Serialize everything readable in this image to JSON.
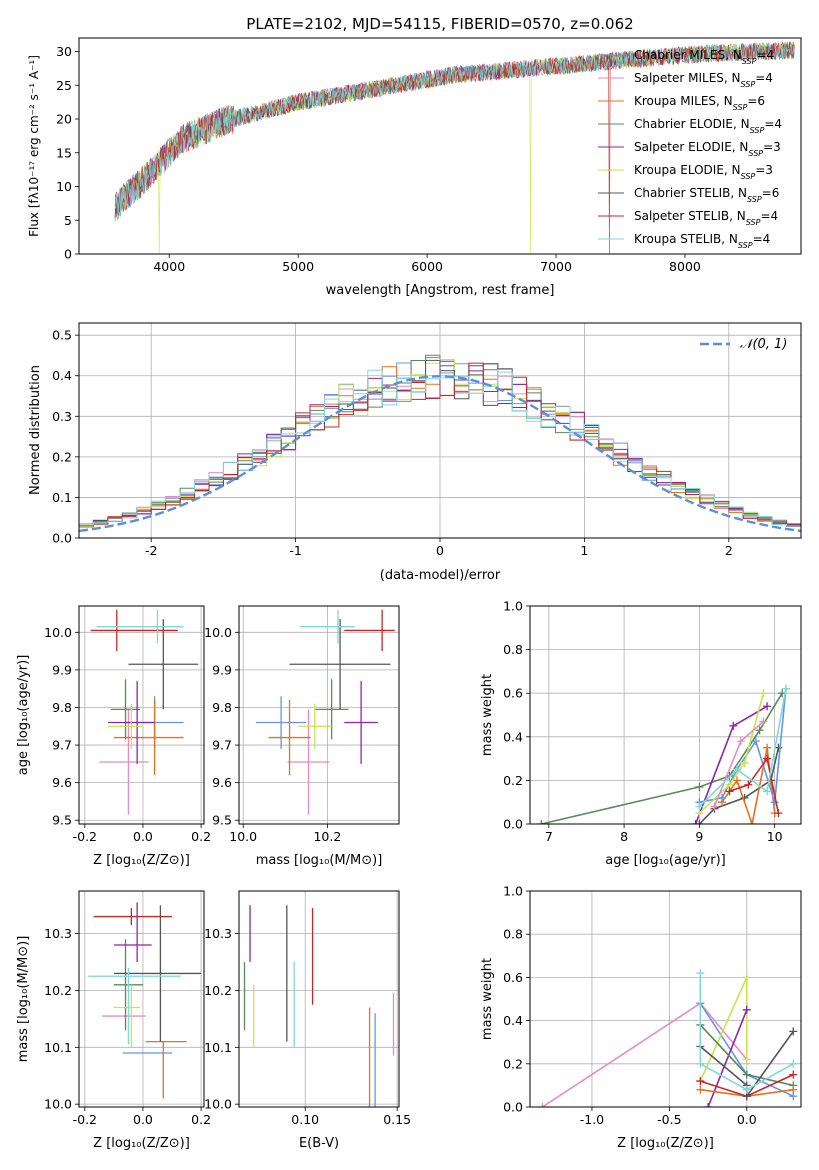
{
  "colors": {
    "Chabrier MILES": "#6495ed",
    "Salpeter MILES": "#e78ac3",
    "Kroupa MILES": "#e2721d",
    "Chabrier ELODIE": "#5a8a5a",
    "Salpeter ELODIE": "#8e24aa",
    "Kroupa ELODIE": "#c7e54a",
    "Chabrier STELIB": "#555555",
    "Salpeter STELIB": "#c62828",
    "Kroupa STELIB": "#7fd8dc"
  },
  "chart_data": [
    {
      "type": "line",
      "title": "PLATE=2102, MJD=54115, FIBERID=0570, z=0.062",
      "xlabel": "wavelength [Angstrom, rest frame]",
      "ylabel": "Flux [fλ10⁻¹⁷ erg cm⁻² s⁻¹ A⁻¹]",
      "xlim": [
        3300,
        8900
      ],
      "ylim": [
        0,
        32
      ],
      "xticks": [
        4000,
        5000,
        6000,
        7000,
        8000
      ],
      "yticks": [
        0,
        5,
        10,
        15,
        20,
        25,
        30
      ],
      "legend_position": "right",
      "series": [
        {
          "name": "Chabrier MILES",
          "ssp": "4"
        },
        {
          "name": "Salpeter MILES",
          "ssp": "4"
        },
        {
          "name": "Kroupa MILES",
          "ssp": "6"
        },
        {
          "name": "Chabrier ELODIE",
          "ssp": "4"
        },
        {
          "name": "Salpeter ELODIE",
          "ssp": "3"
        },
        {
          "name": "Kroupa ELODIE",
          "ssp": "3"
        },
        {
          "name": "Chabrier STELIB",
          "ssp": "6"
        },
        {
          "name": "Salpeter STELIB",
          "ssp": "4"
        },
        {
          "name": "Kroupa STELIB",
          "ssp": "4"
        }
      ],
      "continuum": {
        "x": [
          3580,
          3800,
          3950,
          4100,
          4400,
          4700,
          5000,
          5300,
          5600,
          5900,
          6200,
          6500,
          6800,
          7100,
          7400,
          7700,
          8000,
          8300,
          8600,
          8850
        ],
        "y": [
          7,
          11,
          14,
          17,
          19.5,
          21,
          22.5,
          23.5,
          24.5,
          25.5,
          26.5,
          27,
          27.5,
          28,
          28.5,
          29,
          29.5,
          29.8,
          30,
          30.2
        ]
      },
      "dips": [
        {
          "x": 3920,
          "y": 0,
          "series": "Kroupa ELODIE"
        },
        {
          "x": 6800,
          "y": 0,
          "series": "Kroupa ELODIE"
        },
        {
          "x": 7415,
          "y": 0,
          "series": "Salpeter STELIB"
        }
      ]
    },
    {
      "type": "histogram",
      "xlabel": "(data-model)/error",
      "ylabel": "Normed distribution",
      "xlim": [
        -2.5,
        2.5
      ],
      "ylim": [
        0,
        0.53
      ],
      "xticks": [
        -2,
        -1,
        0,
        1,
        2
      ],
      "yticks": [
        0.0,
        0.1,
        0.2,
        0.3,
        0.4,
        0.5
      ],
      "reference": {
        "name": "𝒩(0, 1)",
        "type": "normal",
        "mean": 0,
        "sigma": 1
      }
    },
    {
      "type": "scatter",
      "xlabel": "Z [log₁₀(Z/Z⊙)]",
      "ylabel": "age  [log₁₀(age/yr)]",
      "xlim": [
        -0.22,
        0.21
      ],
      "ylim": [
        9.49,
        10.07
      ],
      "xticks": [
        -0.2,
        0.0,
        0.2
      ],
      "yticks": [
        9.5,
        9.6,
        9.7,
        9.8,
        9.9,
        10.0
      ],
      "points": [
        {
          "series": "Chabrier MILES",
          "x": 0.04,
          "y": 9.76,
          "xerr": [
            0.1,
            0.1
          ],
          "yerr": [
            0.07,
            0.07
          ]
        },
        {
          "series": "Salpeter MILES",
          "x": -0.05,
          "y": 9.655,
          "xerr": [
            0.1,
            0.07
          ],
          "yerr": [
            0.14,
            0.14
          ]
        },
        {
          "series": "Kroupa MILES",
          "x": 0.04,
          "y": 9.72,
          "xerr": [
            0.14,
            0.1
          ],
          "yerr": [
            0.1,
            0.1
          ]
        },
        {
          "series": "Chabrier ELODIE",
          "x": -0.06,
          "y": 9.795,
          "xerr": [
            0.05,
            0.05
          ],
          "yerr": [
            0.08,
            0.08
          ]
        },
        {
          "series": "Salpeter ELODIE",
          "x": -0.02,
          "y": 9.76,
          "xerr": [
            0.1,
            0.06
          ],
          "yerr": [
            0.11,
            0.11
          ]
        },
        {
          "series": "Kroupa ELODIE",
          "x": -0.04,
          "y": 9.75,
          "xerr": [
            0.08,
            0.04
          ],
          "yerr": [
            0.06,
            0.06
          ]
        },
        {
          "series": "Chabrier STELIB",
          "x": 0.07,
          "y": 9.915,
          "xerr": [
            0.12,
            0.12
          ],
          "yerr": [
            0.12,
            0.12
          ]
        },
        {
          "series": "Salpeter STELIB",
          "x": -0.09,
          "y": 10.005,
          "xerr": [
            0.09,
            0.21
          ],
          "yerr": [
            0.055,
            0.055
          ]
        },
        {
          "series": "Kroupa STELIB",
          "x": 0.05,
          "y": 10.015,
          "xerr": [
            0.21,
            0.09
          ],
          "yerr": [
            0.045,
            0.045
          ]
        }
      ]
    },
    {
      "type": "scatter",
      "xlabel": "mass [log₁₀(M/M⊙)]",
      "ylabel": "",
      "xlim": [
        9.99,
        10.37
      ],
      "ylim": [
        9.49,
        10.07
      ],
      "xticks": [
        10.0,
        10.2
      ],
      "yticks": [
        9.5,
        9.6,
        9.7,
        9.8,
        9.9,
        10.0
      ],
      "points": [
        {
          "series": "Chabrier MILES",
          "x": 10.09,
          "y": 9.76,
          "xerr": [
            0.06,
            0.06
          ],
          "yerr": [
            0.07,
            0.07
          ]
        },
        {
          "series": "Salpeter MILES",
          "x": 10.155,
          "y": 9.655,
          "xerr": [
            0.05,
            0.05
          ],
          "yerr": [
            0.14,
            0.14
          ]
        },
        {
          "series": "Kroupa MILES",
          "x": 10.11,
          "y": 9.72,
          "xerr": [
            0.05,
            0.05
          ],
          "yerr": [
            0.1,
            0.1
          ]
        },
        {
          "series": "Chabrier ELODIE",
          "x": 10.21,
          "y": 9.795,
          "xerr": [
            0.04,
            0.04
          ],
          "yerr": [
            0.08,
            0.08
          ]
        },
        {
          "series": "Salpeter ELODIE",
          "x": 10.28,
          "y": 9.76,
          "xerr": [
            0.04,
            0.04
          ],
          "yerr": [
            0.11,
            0.11
          ]
        },
        {
          "series": "Kroupa ELODIE",
          "x": 10.17,
          "y": 9.75,
          "xerr": [
            0.04,
            0.04
          ],
          "yerr": [
            0.06,
            0.06
          ]
        },
        {
          "series": "Chabrier STELIB",
          "x": 10.23,
          "y": 9.915,
          "xerr": [
            0.12,
            0.12
          ],
          "yerr": [
            0.12,
            0.12
          ]
        },
        {
          "series": "Salpeter STELIB",
          "x": 10.33,
          "y": 10.005,
          "xerr": [
            0.09,
            0.03
          ],
          "yerr": [
            0.055,
            0.055
          ]
        },
        {
          "series": "Kroupa STELIB",
          "x": 10.225,
          "y": 10.015,
          "xerr": [
            0.09,
            0.04
          ],
          "yerr": [
            0.045,
            0.045
          ]
        }
      ]
    },
    {
      "type": "line",
      "xlabel": "age  [log₁₀(age/yr)]",
      "ylabel": "mass weight",
      "xlim": [
        6.75,
        10.35
      ],
      "ylim": [
        0,
        1.0
      ],
      "xticks": [
        7,
        8,
        9,
        10
      ],
      "yticks": [
        0.0,
        0.2,
        0.4,
        0.6,
        0.8,
        1.0
      ],
      "series": [
        {
          "name": "Chabrier ELODIE",
          "x": [
            6.9,
            9.0,
            9.4,
            9.8,
            10.1
          ],
          "y": [
            0.0,
            0.17,
            0.22,
            0.43,
            0.6
          ]
        },
        {
          "name": "Salpeter ELODIE",
          "x": [
            8.95,
            9.45,
            9.9
          ],
          "y": [
            0.0,
            0.45,
            0.54
          ]
        },
        {
          "name": "Chabrier STELIB",
          "x": [
            9.0,
            9.2,
            9.6,
            9.95,
            10.05
          ],
          "y": [
            0.0,
            0.07,
            0.12,
            0.2,
            0.35
          ]
        },
        {
          "name": "Kroupa MILES",
          "x": [
            9.3,
            9.5,
            9.7,
            9.9,
            10.0
          ],
          "y": [
            0.1,
            0.2,
            0.0,
            0.35,
            0.05
          ]
        },
        {
          "name": "Chabrier MILES",
          "x": [
            9.0,
            9.3,
            9.5,
            9.75,
            10.0,
            10.15
          ],
          "y": [
            0.1,
            0.12,
            0.25,
            0.38,
            0.1,
            0.62
          ]
        },
        {
          "name": "Kroupa ELODIE",
          "x": [
            9.0,
            9.4,
            9.6,
            9.85
          ],
          "y": [
            0.05,
            0.18,
            0.28,
            0.6
          ]
        },
        {
          "name": "Salpeter MILES",
          "x": [
            9.2,
            9.55,
            9.85
          ],
          "y": [
            0.08,
            0.38,
            0.47
          ]
        },
        {
          "name": "Salpeter STELIB",
          "x": [
            9.4,
            9.65,
            9.9,
            10.05
          ],
          "y": [
            0.15,
            0.18,
            0.3,
            0.05
          ]
        },
        {
          "name": "Kroupa STELIB",
          "x": [
            9.0,
            9.5,
            9.9,
            10.15
          ],
          "y": [
            0.08,
            0.25,
            0.15,
            0.62
          ]
        }
      ]
    },
    {
      "type": "scatter",
      "xlabel": "Z [log₁₀(Z/Z⊙)]",
      "ylabel": "mass [log₁₀(M/M⊙)]",
      "xlim": [
        -0.22,
        0.21
      ],
      "ylim": [
        9.995,
        10.375
      ],
      "xticks": [
        -0.2,
        0.0,
        0.2
      ],
      "yticks": [
        10.0,
        10.1,
        10.2,
        10.3
      ],
      "points": [
        {
          "series": "Chabrier MILES",
          "x": 0.0,
          "y": 10.09,
          "xerr": [
            0.07,
            0.1
          ],
          "yerr": [
            0.0,
            0.0
          ]
        },
        {
          "series": "Salpeter MILES",
          "x": -0.05,
          "y": 10.155,
          "xerr": [
            0.09,
            0.06
          ],
          "yerr": [
            0.0,
            0.0
          ]
        },
        {
          "series": "Kroupa MILES",
          "x": 0.07,
          "y": 10.11,
          "xerr": [
            0.06,
            0.08
          ],
          "yerr": [
            0.1,
            0.0
          ]
        },
        {
          "series": "Chabrier ELODIE",
          "x": -0.06,
          "y": 10.21,
          "xerr": [
            0.04,
            0.06
          ],
          "yerr": [
            0.08,
            0.08
          ]
        },
        {
          "series": "Salpeter ELODIE",
          "x": -0.02,
          "y": 10.28,
          "xerr": [
            0.08,
            0.05
          ],
          "yerr": [
            0.03,
            0.075
          ]
        },
        {
          "series": "Kroupa ELODIE",
          "x": -0.04,
          "y": 10.17,
          "xerr": [
            0.06,
            0.03
          ],
          "yerr": [
            0.07,
            0.04
          ]
        },
        {
          "series": "Chabrier STELIB",
          "x": 0.06,
          "y": 10.23,
          "xerr": [
            0.16,
            0.14
          ],
          "yerr": [
            0.12,
            0.12
          ]
        },
        {
          "series": "Salpeter STELIB",
          "x": -0.04,
          "y": 10.33,
          "xerr": [
            0.13,
            0.14
          ],
          "yerr": [
            0.015,
            0.015
          ]
        },
        {
          "series": "Kroupa STELIB",
          "x": -0.05,
          "y": 10.225,
          "xerr": [
            0.14,
            0.18
          ],
          "yerr": [
            0.12,
            0.015
          ]
        }
      ]
    },
    {
      "type": "scatter",
      "xlabel": "E(B-V)",
      "ylabel": "",
      "xlim": [
        0.064,
        0.151
      ],
      "ylim": [
        9.995,
        10.375
      ],
      "xticks": [
        0.05,
        0.1,
        0.15
      ],
      "yticks": [
        10.0,
        10.1,
        10.2,
        10.3
      ],
      "points": [
        {
          "series": "Salpeter ELODIE",
          "x": 0.07,
          "y": 10.3,
          "yerr": [
            0.05,
            0.05
          ]
        },
        {
          "series": "Chabrier ELODIE",
          "x": 0.067,
          "y": 10.19,
          "yerr": [
            0.06,
            0.06
          ]
        },
        {
          "series": "Kroupa ELODIE",
          "x": 0.072,
          "y": 10.155,
          "yerr": [
            0.055,
            0.055
          ]
        },
        {
          "series": "Chabrier STELIB",
          "x": 0.09,
          "y": 10.23,
          "yerr": [
            0.12,
            0.12
          ]
        },
        {
          "series": "Kroupa STELIB",
          "x": 0.094,
          "y": 10.175,
          "yerr": [
            0.075,
            0.075
          ]
        },
        {
          "series": "Salpeter STELIB",
          "x": 0.104,
          "y": 10.26,
          "yerr": [
            0.085,
            0.085
          ]
        },
        {
          "series": "Kroupa MILES",
          "x": 0.135,
          "y": 10.07,
          "yerr": [
            0.1,
            0.1
          ]
        },
        {
          "series": "Chabrier MILES",
          "x": 0.138,
          "y": 10.07,
          "yerr": [
            0.09,
            0.09
          ]
        },
        {
          "series": "Salpeter MILES",
          "x": 0.148,
          "y": 10.14,
          "yerr": [
            0.055,
            0.055
          ]
        }
      ]
    },
    {
      "type": "line",
      "xlabel": "Z [log₁₀(Z/Z⊙)]",
      "ylabel": "mass weight",
      "xlim": [
        -1.4,
        0.35
      ],
      "ylim": [
        0,
        1.0
      ],
      "xticks": [
        -1.0,
        -0.5,
        0.0
      ],
      "yticks": [
        0.0,
        0.2,
        0.4,
        0.6,
        0.8,
        1.0
      ],
      "series": [
        {
          "name": "Salpeter MILES",
          "x": [
            -1.32,
            -0.3,
            0.0
          ],
          "y": [
            0.0,
            0.48,
            0.22
          ]
        },
        {
          "name": "Chabrier MILES",
          "x": [
            -0.3,
            0.0,
            0.3
          ],
          "y": [
            0.48,
            0.15,
            0.05
          ]
        },
        {
          "name": "Kroupa ELODIE",
          "x": [
            -0.3,
            0.0,
            0.0
          ],
          "y": [
            0.12,
            0.6,
            0.22
          ]
        },
        {
          "name": "Salpeter ELODIE",
          "x": [
            -0.25,
            0.0
          ],
          "y": [
            0.0,
            0.45
          ]
        },
        {
          "name": "Chabrier ELODIE",
          "x": [
            -0.3,
            0.0,
            0.3
          ],
          "y": [
            0.38,
            0.15,
            0.1
          ]
        },
        {
          "name": "Kroupa MILES",
          "x": [
            -0.3,
            0.0,
            0.3
          ],
          "y": [
            0.08,
            0.05,
            0.08
          ]
        },
        {
          "name": "Salpeter STELIB",
          "x": [
            -0.3,
            0.0,
            0.3
          ],
          "y": [
            0.12,
            0.05,
            0.15
          ]
        },
        {
          "name": "Chabrier STELIB",
          "x": [
            -0.3,
            0.0,
            0.0,
            0.3
          ],
          "y": [
            0.28,
            0.1,
            0.05,
            0.35
          ]
        },
        {
          "name": "Kroupa STELIB",
          "x": [
            -0.3,
            -0.3,
            0.0,
            0.3
          ],
          "y": [
            0.62,
            0.2,
            0.08,
            0.2
          ]
        }
      ]
    }
  ]
}
